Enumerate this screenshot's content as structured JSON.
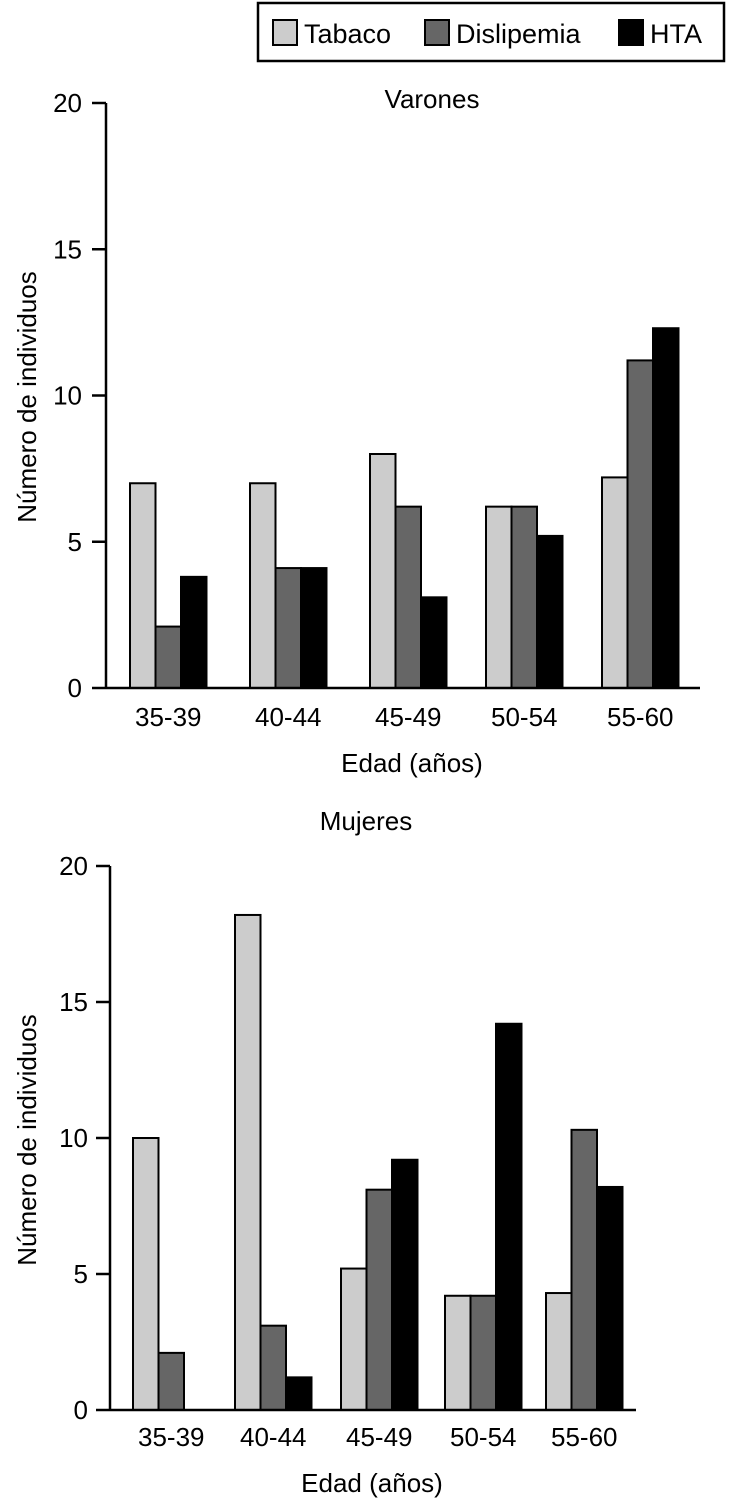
{
  "chart_data": [
    {
      "type": "bar",
      "title": "Varones",
      "xlabel": "Edad (años)",
      "ylabel": "Número de individuos",
      "ylim": [
        0,
        20
      ],
      "yticks": [
        0,
        5,
        10,
        15,
        20
      ],
      "categories": [
        "35-39",
        "40-44",
        "45-49",
        "50-54",
        "55-60"
      ],
      "series": [
        {
          "name": "Tabaco",
          "color": "#cccccc",
          "values": [
            7,
            7,
            8,
            6.2,
            7.2
          ]
        },
        {
          "name": "Dislipemia",
          "color": "#666666",
          "values": [
            2.1,
            4.1,
            6.2,
            6.2,
            11.2
          ]
        },
        {
          "name": "HTA",
          "color": "#000000",
          "values": [
            3.8,
            4.1,
            3.1,
            5.2,
            12.3
          ]
        }
      ],
      "legend": "top-right",
      "grid": false
    },
    {
      "type": "bar",
      "title": "Mujeres",
      "xlabel": "Edad (años)",
      "ylabel": "Número de individuos",
      "ylim": [
        0,
        20
      ],
      "yticks": [
        0,
        5,
        10,
        15,
        20
      ],
      "categories": [
        "35-39",
        "40-44",
        "45-49",
        "50-54",
        "55-60"
      ],
      "series": [
        {
          "name": "Tabaco",
          "color": "#cccccc",
          "values": [
            10,
            18.2,
            5.2,
            4.2,
            4.3
          ]
        },
        {
          "name": "Dislipemia",
          "color": "#666666",
          "values": [
            2.1,
            3.1,
            8.1,
            4.2,
            10.3
          ]
        },
        {
          "name": "HTA",
          "color": "#000000",
          "values": [
            0,
            1.2,
            9.2,
            14.2,
            8.2
          ]
        }
      ],
      "grid": false
    }
  ],
  "legend": {
    "items": [
      {
        "label": "Tabaco",
        "color": "#cccccc"
      },
      {
        "label": "Dislipemia",
        "color": "#666666"
      },
      {
        "label": "HTA",
        "color": "#000000"
      }
    ]
  }
}
